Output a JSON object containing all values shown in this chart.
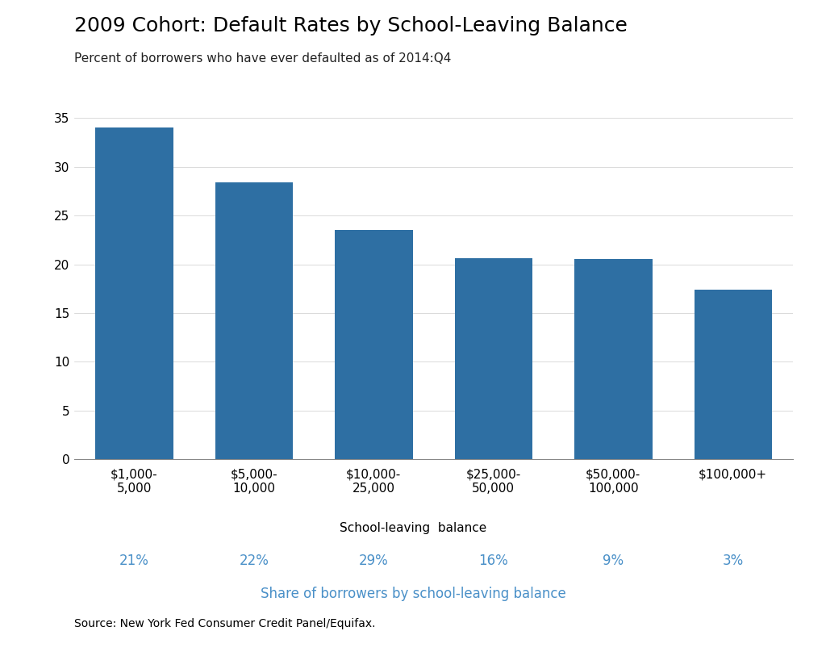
{
  "title": "2009 Cohort: Default Rates by School-Leaving Balance",
  "subtitle": "Percent of borrowers who have ever defaulted as of 2014:Q4",
  "categories": [
    "$1,000-\n5,000",
    "$5,000-\n10,000",
    "$10,000-\n25,000",
    "$25,000-\n50,000",
    "$50,000-\n100,000",
    "$100,000+"
  ],
  "values": [
    34.0,
    28.4,
    23.5,
    20.6,
    20.5,
    17.4
  ],
  "shares": [
    "21%",
    "22%",
    "29%",
    "16%",
    "9%",
    "3%"
  ],
  "bar_color": "#2E6FA3",
  "share_color": "#4A90C8",
  "xlabel": "School-leaving  balance",
  "share_label": "Share of borrowers by school-leaving balance",
  "source": "Source: New York Fed Consumer Credit Panel/Equifax.",
  "ylim": [
    0,
    35
  ],
  "yticks": [
    0,
    5,
    10,
    15,
    20,
    25,
    30,
    35
  ],
  "background_color": "#FFFFFF",
  "title_fontsize": 18,
  "subtitle_fontsize": 11,
  "tick_fontsize": 11,
  "share_fontsize": 12,
  "xlabel_fontsize": 11,
  "source_fontsize": 10
}
